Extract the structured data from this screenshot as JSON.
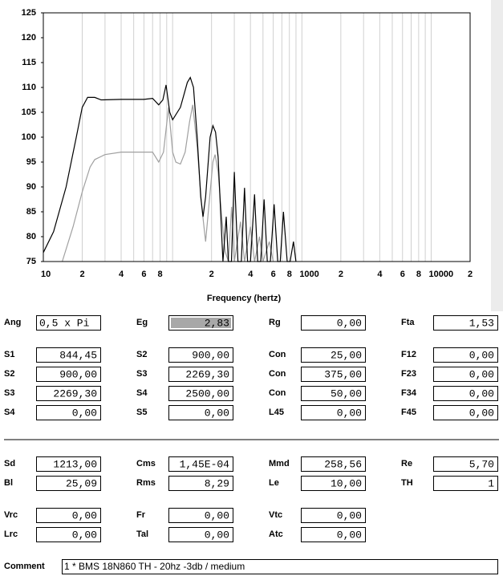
{
  "chart_data": {
    "type": "line",
    "x_label": "Frequency (hertz)",
    "xscale": "log",
    "xlim": [
      10,
      20000
    ],
    "ylim": [
      75,
      125
    ],
    "xticks": [
      10,
      {
        "value": 20,
        "label": "2"
      },
      {
        "value": 40,
        "label": "4"
      },
      {
        "value": 60,
        "label": "6"
      },
      {
        "value": 80,
        "label": "8"
      },
      {
        "value": 200,
        "label": "2"
      },
      {
        "value": 400,
        "label": "4"
      },
      {
        "value": 600,
        "label": "6"
      },
      {
        "value": 800,
        "label": "8"
      },
      1000,
      {
        "value": 2000,
        "label": "2"
      },
      {
        "value": 4000,
        "label": "4"
      },
      {
        "value": 6000,
        "label": "6"
      },
      {
        "value": 8000,
        "label": "8"
      },
      10000,
      {
        "value": 20000,
        "label": "2"
      }
    ],
    "x_minor_ticks": [
      30,
      50,
      70,
      90,
      100,
      300,
      500,
      700,
      900,
      3000,
      5000,
      7000,
      9000
    ],
    "yticks": [
      75,
      80,
      85,
      90,
      95,
      100,
      105,
      110,
      115,
      120,
      125
    ],
    "series": [
      {
        "color": "#000000",
        "x": [
          10,
          12,
          15,
          18,
          20,
          22,
          25,
          28,
          40,
          60,
          70,
          78,
          84,
          89,
          95,
          100,
          115,
          130,
          137,
          145,
          155,
          165,
          172,
          180,
          195,
          205,
          215,
          225,
          235,
          245,
          260,
          270,
          285,
          300,
          320,
          340,
          360,
          380,
          400,
          430,
          455,
          480,
          510,
          540,
          570,
          610,
          650,
          680,
          720,
          770,
          810,
          860,
          900
        ],
        "values": [
          76.8,
          81,
          90,
          100,
          106,
          108,
          108,
          107.5,
          107.6,
          107.6,
          107.8,
          106.5,
          107.5,
          110.5,
          105,
          103.5,
          106,
          111,
          112,
          110,
          100,
          88,
          84,
          88,
          100,
          102.3,
          101,
          96,
          85,
          75,
          84,
          75,
          75,
          93,
          75,
          75,
          89.8,
          75,
          75,
          88.5,
          75,
          75,
          87.5,
          75,
          75,
          86.5,
          75,
          75,
          85,
          75,
          75,
          79,
          75
        ]
      },
      {
        "color": "#a0a0a0",
        "x": [
          14,
          17,
          20,
          23,
          25,
          30,
          40,
          70,
          78,
          85,
          93,
          100,
          106,
          115,
          125,
          135,
          143,
          155,
          168,
          180,
          192,
          205,
          213,
          225,
          240,
          255,
          270,
          286,
          300,
          335,
          360,
          400,
          430,
          470,
          500,
          560,
          600
        ],
        "values": [
          75,
          82,
          89,
          94,
          95.5,
          96.5,
          97,
          97,
          95,
          97,
          106,
          97,
          95,
          94.6,
          97,
          103,
          106.5,
          98,
          86,
          79,
          87,
          95,
          96.5,
          93,
          84,
          77,
          75,
          86,
          75,
          83,
          75,
          82,
          75,
          80,
          75,
          79,
          75
        ]
      }
    ]
  },
  "form": {
    "rows": [
      [
        {
          "label": "Ang",
          "value": "0,5 x Pi",
          "align": "left"
        },
        {
          "label": "Eg",
          "value": "2,83",
          "selected": true
        },
        {
          "label": "Rg",
          "value": "0,00"
        },
        {
          "label": "Fta",
          "value": "1,53",
          "value_color": "#a0a0a0"
        }
      ],
      [
        {
          "label": "S1",
          "value": "844,45"
        },
        {
          "label": "S2",
          "value": "900,00"
        },
        {
          "label": "Con",
          "value": "25,00"
        },
        {
          "label": "F12",
          "value": "0,00",
          "value_color": "#a0a0a0"
        }
      ],
      [
        {
          "label": "S2",
          "value": "900,00"
        },
        {
          "label": "S3",
          "value": "2269,30"
        },
        {
          "label": "Con",
          "value": "375,00"
        },
        {
          "label": "F23",
          "value": "0,00",
          "value_color": "#a0a0a0"
        }
      ],
      [
        {
          "label": "S3",
          "value": "2269,30"
        },
        {
          "label": "S4",
          "value": "2500,00"
        },
        {
          "label": "Con",
          "value": "50,00"
        },
        {
          "label": "F34",
          "value": "0,00",
          "value_color": "#a0a0a0"
        }
      ],
      [
        {
          "label": "S4",
          "value": "0,00"
        },
        {
          "label": "S5",
          "value": "0,00"
        },
        {
          "label": "L45",
          "value": "0,00"
        },
        {
          "label": "F45",
          "value": "0,00",
          "value_color": "#a0a0a0"
        }
      ],
      [
        {
          "label": "Sd",
          "value": "1213,00"
        },
        {
          "label": "Cms",
          "value": "1,45E-04"
        },
        {
          "label": "Mmd",
          "value": "258,56"
        },
        {
          "label": "Re",
          "value": "5,70"
        }
      ],
      [
        {
          "label": "Bl",
          "value": "25,09"
        },
        {
          "label": "Rms",
          "value": "8,29"
        },
        {
          "label": "Le",
          "value": "10,00"
        },
        {
          "label": "TH",
          "value": "1",
          "label_color": "#d00000",
          "value_color": "#a0a0a0"
        }
      ],
      [
        {
          "label": "Vrc",
          "value": "0,00"
        },
        {
          "label": "Fr",
          "value": "0,00"
        },
        {
          "label": "Vtc",
          "value": "0,00"
        }
      ],
      [
        {
          "label": "Lrc",
          "value": "0,00"
        },
        {
          "label": "Tal",
          "value": "0,00"
        },
        {
          "label": "Atc",
          "value": "0,00"
        }
      ]
    ],
    "comment_label": "Comment",
    "comment": "1 * BMS 18N860 TH - 20hz -3db / medium"
  }
}
